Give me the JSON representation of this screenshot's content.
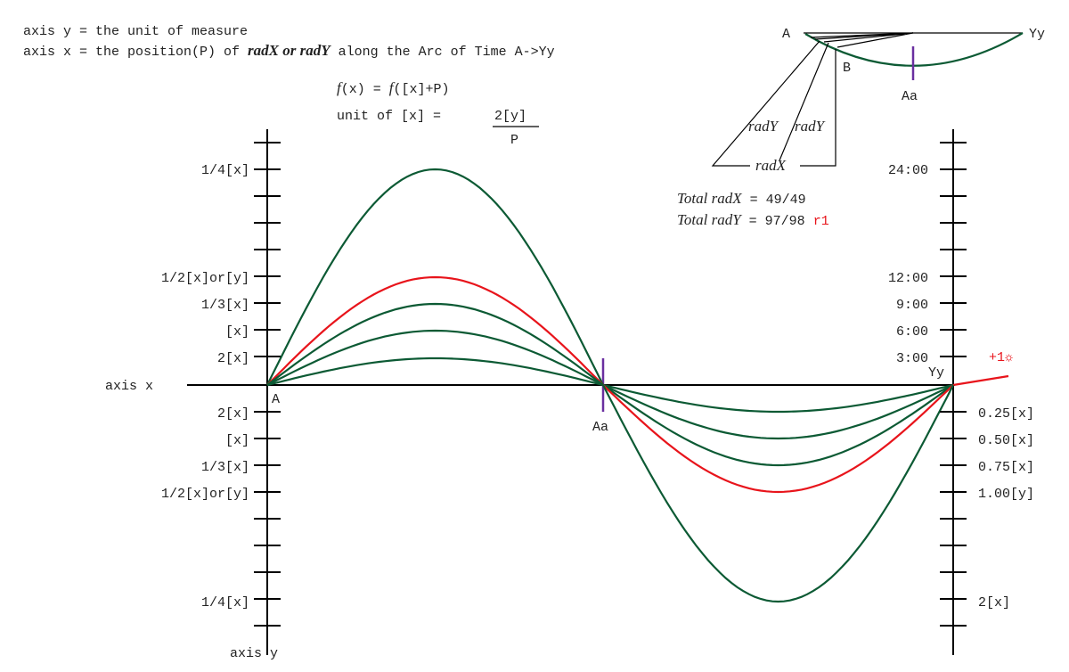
{
  "heading": {
    "line1": "axis y = the unit of measure",
    "line2_start": "axis x = the position(P) of ",
    "line2_em": "radX or radY",
    "line2_end": " along the Arc of Time A->Yy"
  },
  "formula": {
    "f1": "f",
    "arg1": "(x) = ",
    "f2": "f",
    "arg2": "([x]+P)",
    "unit": "unit of [x] = ",
    "numerator": "2[y]",
    "denominator": "P"
  },
  "left_labels_upper": [
    "1/4[x]",
    "1/2[x]or[y]",
    "1/3[x]",
    "[x]",
    "2[x]"
  ],
  "left_labels_lower": [
    "2[x]",
    "[x]",
    "1/3[x]",
    "1/2[x]or[y]",
    "1/4[x]"
  ],
  "right_labels_upper": [
    "24:00",
    "12:00",
    "9:00",
    "6:00",
    "3:00"
  ],
  "right_labels_lower": [
    "0.25[x]",
    "0.50[x]",
    "0.75[x]",
    "1.00[y]",
    "2[x]"
  ],
  "points": {
    "a": "A",
    "aa": "Aa",
    "yy": "Yy"
  },
  "axes": {
    "x": "axis x",
    "y": "axis y"
  },
  "sun": {
    "plus": "+1",
    "symbol": "☼"
  },
  "inset": {
    "a": "A",
    "yy": "Yy",
    "b": "B",
    "aa": "Aa",
    "rady1": "radY",
    "rady2": "radY",
    "radx": "radX"
  },
  "totals": {
    "radx_label": "Total radX",
    "radx_value": " = 49/49",
    "rady_label": "Total radY",
    "rady_value": " = 97/98 ",
    "r1": "r1"
  }
}
